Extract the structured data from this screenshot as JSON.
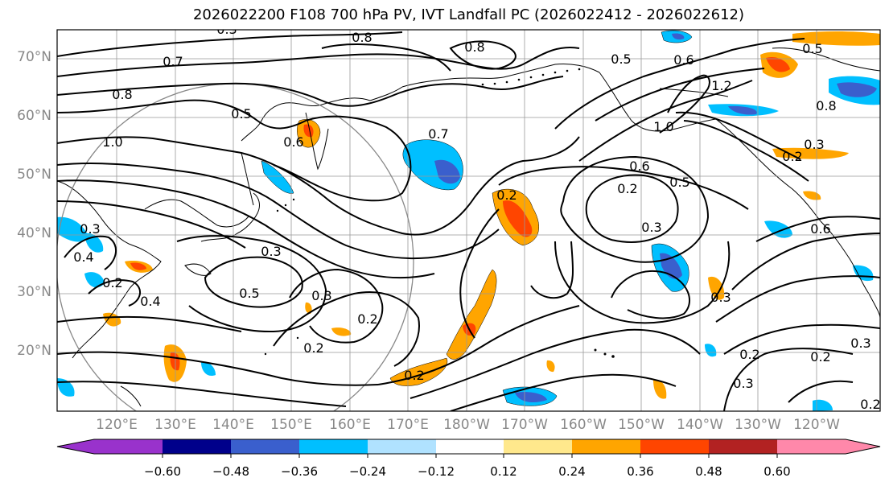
{
  "title": "2026022200 F108 700 hPa PV, IVT Landfall PC (2026022412 - 2026022612)",
  "lat_labels": [
    "70°N",
    "60°N",
    "50°N",
    "40°N",
    "30°N",
    "20°N"
  ],
  "lon_labels": [
    "120°E",
    "130°E",
    "140°E",
    "150°E",
    "160°E",
    "170°E",
    "180°W",
    "170°W",
    "160°W",
    "150°W",
    "140°W",
    "130°W",
    "120°W"
  ],
  "colorbar": {
    "ticks": [
      "−0.60",
      "−0.48",
      "−0.36",
      "−0.24",
      "−0.12",
      "0.12",
      "0.24",
      "0.36",
      "0.48",
      "0.60"
    ],
    "colors": [
      "#9932cc",
      "#00008b",
      "#3a5fcd",
      "#00bfff",
      "#b0e2ff",
      "#ffffff",
      "#ffe88c",
      "#ffa500",
      "#ff4500",
      "#b22222",
      "#ff88aa"
    ]
  },
  "contour_labels": [
    "0.8",
    "0.7",
    "0.8",
    "0.5",
    "0.6",
    "1.2",
    "0.5",
    "0.8",
    "0.8",
    "1.0",
    "0.5",
    "0.6",
    "0.7",
    "1.0",
    "0.3",
    "0.2",
    "0.6",
    "0.5",
    "0.2",
    "0.3",
    "0.6",
    "0.3",
    "0.4",
    "0.2",
    "0.4",
    "0.5",
    "0.3",
    "0.2",
    "0.3",
    "0.2",
    "0.2",
    "0.3",
    "0.2",
    "0.2",
    "0.3",
    "0.3",
    "0.2",
    "0.3",
    "0.2"
  ]
}
